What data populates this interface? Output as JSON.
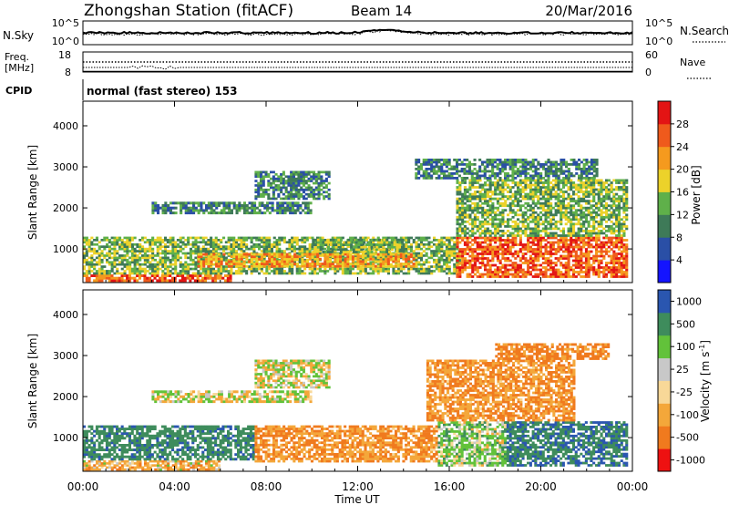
{
  "header": {
    "station": "Zhongshan Station (fitACF)",
    "beam": "Beam 14",
    "date": "20/Mar/2016"
  },
  "top_panels": {
    "nsky_label": "N.Sky",
    "nsky_ticks": [
      "10^5",
      "10^0"
    ],
    "nsearch_label": "N.Search",
    "nsearch_ticks": [
      "10^5",
      "10^0"
    ],
    "freq_label": [
      "Freq.",
      "[MHz]"
    ],
    "freq_ticks": [
      "18",
      "8"
    ],
    "nave_label": "Nave",
    "nave_ticks": [
      "60",
      "0"
    ],
    "cpid_label": "CPID",
    "cpid_text": "normal (fast stereo) 153"
  },
  "x_axis": {
    "label": "Time UT",
    "ticks": [
      "00:00",
      "04:00",
      "08:00",
      "12:00",
      "16:00",
      "20:00",
      "00:00"
    ]
  },
  "colors": {
    "power": [
      "#1414ff",
      "#2a4fa6",
      "#3e7a58",
      "#5fb04a",
      "#ecd22a",
      "#f59a1e",
      "#ef5a1c",
      "#e31414"
    ],
    "velocity": [
      "#ee1111",
      "#f07a1e",
      "#f4a73a",
      "#f8d898",
      "#c8c8c8",
      "#62c23a",
      "#3e8c5c",
      "#2a56b0"
    ]
  },
  "chart_data": [
    {
      "type": "heatmap",
      "title": "Power",
      "ylabel": "Slant Range [km]",
      "xlabel": "",
      "ylim": [
        180,
        4600
      ],
      "yticks": [
        1000,
        2000,
        3000,
        4000
      ],
      "xlim_hours": [
        0,
        24
      ],
      "colorbar": {
        "label": "Power [dB]",
        "ticks": [
          "4",
          "8",
          "12",
          "16",
          "20",
          "24",
          "28"
        ],
        "range": [
          0,
          32
        ]
      },
      "regions": [
        {
          "t": [
            0,
            6.5
          ],
          "r": [
            200,
            380
          ],
          "level": 6
        },
        {
          "t": [
            0,
            16.5
          ],
          "r": [
            380,
            1300
          ],
          "level": 3
        },
        {
          "t": [
            5,
            14.5
          ],
          "r": [
            550,
            900
          ],
          "level": 5
        },
        {
          "t": [
            10,
            14
          ],
          "r": [
            900,
            1250
          ],
          "level": 3
        },
        {
          "t": [
            3,
            10
          ],
          "r": [
            1850,
            2150
          ],
          "level": 2
        },
        {
          "t": [
            7.5,
            10.8
          ],
          "r": [
            2200,
            2900
          ],
          "level": 2
        },
        {
          "t": [
            16.3,
            23.8
          ],
          "r": [
            300,
            1300
          ],
          "level": 6
        },
        {
          "t": [
            16.3,
            23.8
          ],
          "r": [
            1300,
            2700
          ],
          "level": 3
        },
        {
          "t": [
            14.5,
            22.5
          ],
          "r": [
            2700,
            3200
          ],
          "level": 2
        }
      ]
    },
    {
      "type": "heatmap",
      "title": "Velocity",
      "ylabel": "Slant Range [km]",
      "xlabel": "Time UT",
      "ylim": [
        180,
        4600
      ],
      "yticks": [
        1000,
        2000,
        3000,
        4000
      ],
      "xlim_hours": [
        0,
        24
      ],
      "colorbar": {
        "label": "Velocity [m s^-1]",
        "ticks": [
          "1000",
          "500",
          "100",
          "25",
          "-25",
          "-100",
          "-500",
          "-1000"
        ],
        "range": [
          -1250,
          1250
        ]
      },
      "regions": [
        {
          "t": [
            0,
            6
          ],
          "r": [
            200,
            450
          ],
          "value": -150
        },
        {
          "t": [
            0,
            7.5
          ],
          "r": [
            450,
            1300
          ],
          "value": 600
        },
        {
          "t": [
            7.5,
            15.5
          ],
          "r": [
            400,
            1300
          ],
          "value": -300
        },
        {
          "t": [
            3,
            10
          ],
          "r": [
            1850,
            2150
          ],
          "value": 0
        },
        {
          "t": [
            7.5,
            10.8
          ],
          "r": [
            2200,
            2900
          ],
          "value": 0
        },
        {
          "t": [
            15.5,
            18.5
          ],
          "r": [
            300,
            1400
          ],
          "value": 150
        },
        {
          "t": [
            18.5,
            23.8
          ],
          "r": [
            300,
            1400
          ],
          "value": 700
        },
        {
          "t": [
            15,
            21.5
          ],
          "r": [
            1400,
            2900
          ],
          "value": -300
        },
        {
          "t": [
            18,
            23
          ],
          "r": [
            2900,
            3300
          ],
          "value": -400
        }
      ]
    }
  ]
}
